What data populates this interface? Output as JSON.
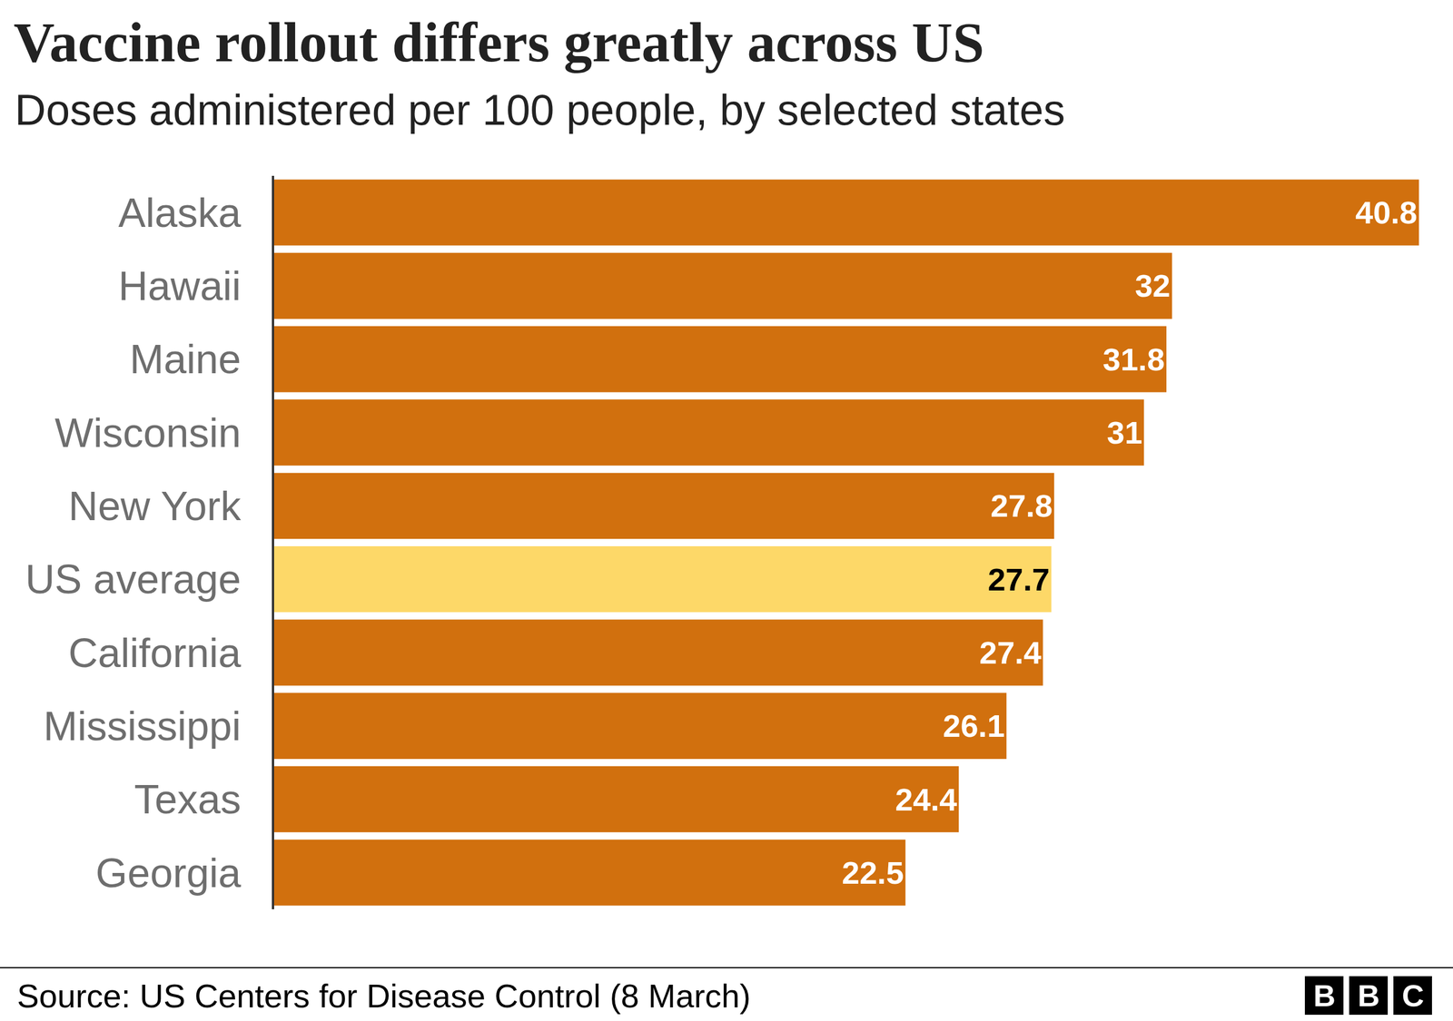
{
  "chart_data": {
    "type": "bar",
    "orientation": "horizontal",
    "title": "Vaccine rollout differs greatly across US",
    "subtitle": "Doses administered per 100 people, by selected states",
    "categories": [
      "Alaska",
      "Hawaii",
      "Maine",
      "Wisconsin",
      "New York",
      "US average",
      "California",
      "Mississippi",
      "Texas",
      "Georgia"
    ],
    "values": [
      40.8,
      32,
      31.8,
      31,
      27.8,
      27.7,
      27.4,
      26.1,
      24.4,
      22.5
    ],
    "colors": [
      "#d1700e",
      "#d1700e",
      "#d1700e",
      "#d1700e",
      "#d1700e",
      "#fdd868",
      "#d1700e",
      "#d1700e",
      "#d1700e",
      "#d1700e"
    ],
    "xlim": [
      0,
      40.8
    ],
    "data_labels": true,
    "tick_labels": "y",
    "grid": false,
    "source": "Source: US Centers for Disease Control (8 March)",
    "logo": "BBC"
  }
}
